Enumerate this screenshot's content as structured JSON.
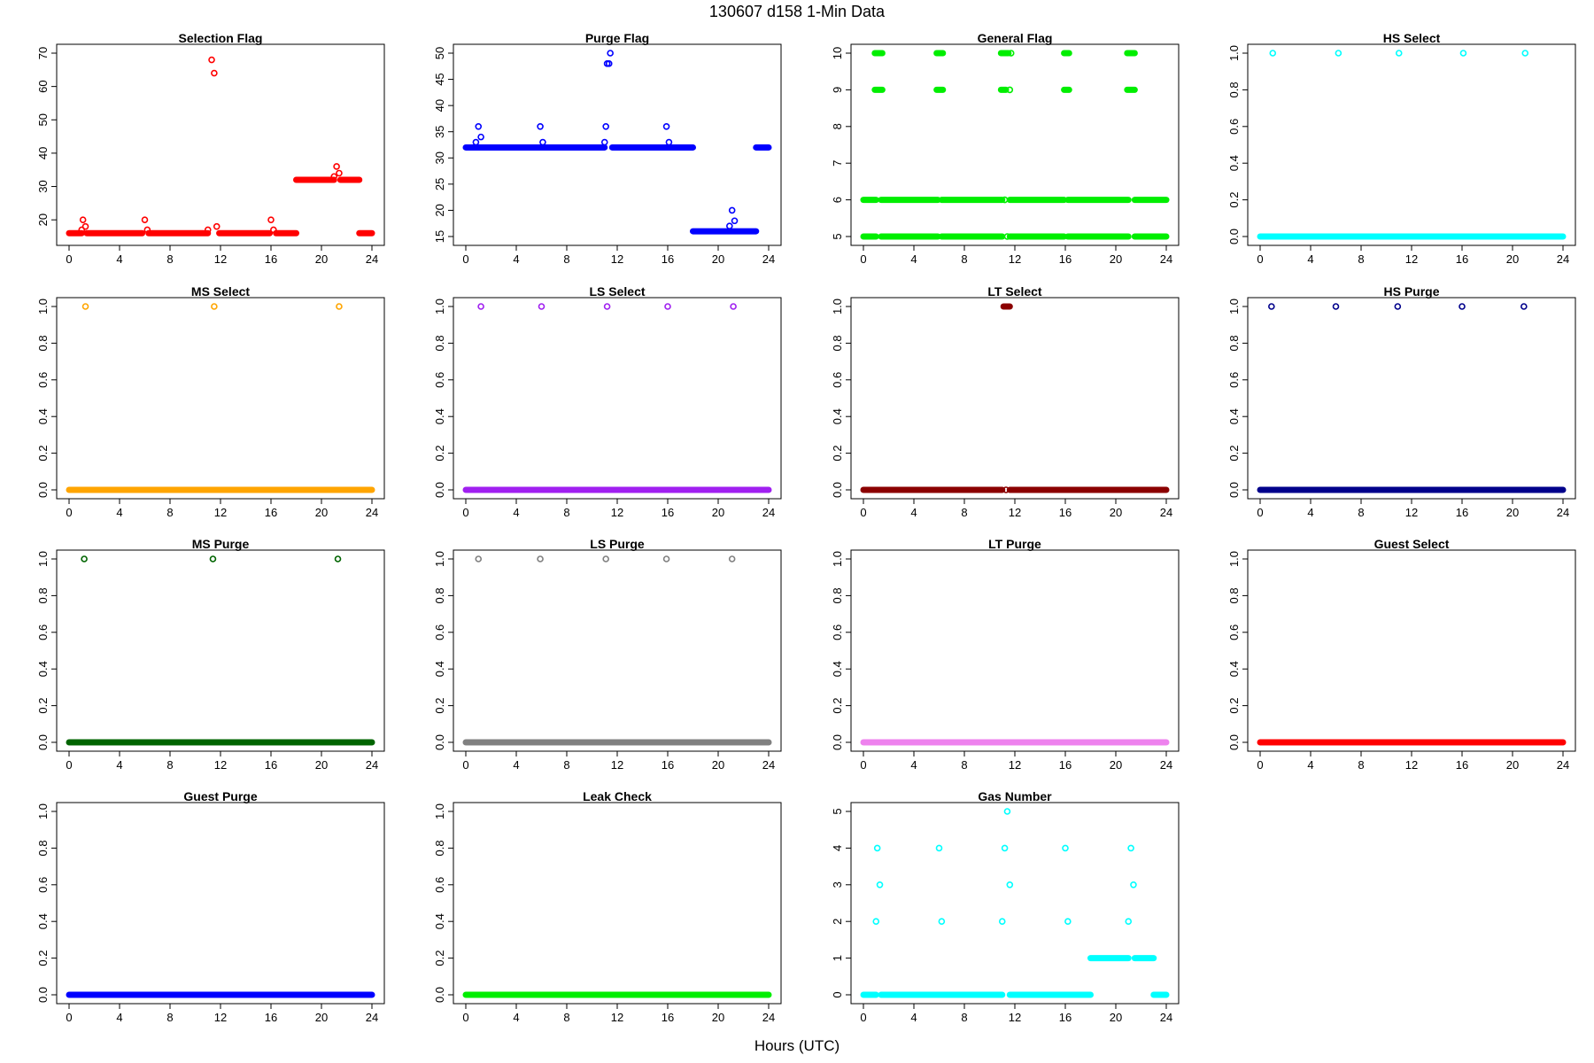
{
  "figure": {
    "title": "130607   d158   1-Min Data",
    "xlabel": "Hours (UTC)"
  },
  "chart_data": [
    {
      "type": "scatter",
      "title": "Selection Flag",
      "color": "#ff0000",
      "xlim": [
        0,
        24
      ],
      "ylim": [
        15,
        70
      ],
      "xticks": [
        0,
        4,
        8,
        12,
        16,
        20,
        24
      ],
      "yticks": [
        20,
        30,
        40,
        50,
        60,
        70
      ],
      "segments": [
        {
          "x0": 0,
          "x1": 1.0,
          "y": 16
        },
        {
          "x0": 1.4,
          "x1": 5.8,
          "y": 16
        },
        {
          "x0": 6.3,
          "x1": 11.0,
          "y": 16
        },
        {
          "x0": 11.9,
          "x1": 15.9,
          "y": 16
        },
        {
          "x0": 16.4,
          "x1": 18.0,
          "y": 16
        },
        {
          "x0": 18.0,
          "x1": 21.0,
          "y": 32
        },
        {
          "x0": 21.5,
          "x1": 23.0,
          "y": 32
        },
        {
          "x0": 23.0,
          "x1": 24.0,
          "y": 16
        }
      ],
      "points": [
        {
          "x": 1.0,
          "y": 17
        },
        {
          "x": 1.1,
          "y": 20
        },
        {
          "x": 1.3,
          "y": 18
        },
        {
          "x": 6.0,
          "y": 20
        },
        {
          "x": 6.2,
          "y": 17
        },
        {
          "x": 11.0,
          "y": 17
        },
        {
          "x": 11.3,
          "y": 68
        },
        {
          "x": 11.5,
          "y": 64
        },
        {
          "x": 11.7,
          "y": 18
        },
        {
          "x": 16.0,
          "y": 20
        },
        {
          "x": 16.2,
          "y": 17
        },
        {
          "x": 21.0,
          "y": 33
        },
        {
          "x": 21.2,
          "y": 36
        },
        {
          "x": 21.4,
          "y": 34
        }
      ]
    },
    {
      "type": "scatter",
      "title": "Purge Flag",
      "color": "#0000ff",
      "xlim": [
        0,
        24
      ],
      "ylim": [
        15,
        50
      ],
      "xticks": [
        0,
        4,
        8,
        12,
        16,
        20,
        24
      ],
      "yticks": [
        15,
        20,
        25,
        30,
        35,
        40,
        45,
        50
      ],
      "segments": [
        {
          "x0": 0,
          "x1": 11.0,
          "y": 32
        },
        {
          "x0": 11.6,
          "x1": 18.0,
          "y": 32
        },
        {
          "x0": 18.0,
          "x1": 23.0,
          "y": 16
        },
        {
          "x0": 23.0,
          "x1": 24.0,
          "y": 32
        }
      ],
      "points": [
        {
          "x": 0.8,
          "y": 33
        },
        {
          "x": 1.0,
          "y": 36
        },
        {
          "x": 1.2,
          "y": 34
        },
        {
          "x": 5.9,
          "y": 36
        },
        {
          "x": 6.1,
          "y": 33
        },
        {
          "x": 11.0,
          "y": 33
        },
        {
          "x": 11.1,
          "y": 36
        },
        {
          "x": 11.2,
          "y": 48
        },
        {
          "x": 11.35,
          "y": 48
        },
        {
          "x": 11.45,
          "y": 50
        },
        {
          "x": 15.9,
          "y": 36
        },
        {
          "x": 16.1,
          "y": 33
        },
        {
          "x": 20.9,
          "y": 17
        },
        {
          "x": 21.1,
          "y": 20
        },
        {
          "x": 21.3,
          "y": 18
        }
      ]
    },
    {
      "type": "scatter",
      "title": "General Flag",
      "color": "#00ee00",
      "xlim": [
        0,
        24
      ],
      "ylim": [
        5,
        10
      ],
      "xticks": [
        0,
        4,
        8,
        12,
        16,
        20,
        24
      ],
      "yticks": [
        5,
        6,
        7,
        8,
        9,
        10
      ],
      "segments": [
        {
          "x0": 0,
          "x1": 1.0,
          "y": 6
        },
        {
          "x0": 1.4,
          "x1": 5.9,
          "y": 6
        },
        {
          "x0": 6.2,
          "x1": 11.0,
          "y": 6
        },
        {
          "x0": 11.6,
          "x1": 15.9,
          "y": 6
        },
        {
          "x0": 16.2,
          "x1": 21.0,
          "y": 6
        },
        {
          "x0": 21.5,
          "x1": 24.0,
          "y": 6
        },
        {
          "x0": 0,
          "x1": 1.0,
          "y": 5
        },
        {
          "x0": 1.4,
          "x1": 5.9,
          "y": 5
        },
        {
          "x0": 6.2,
          "x1": 11.0,
          "y": 5
        },
        {
          "x0": 11.6,
          "x1": 15.9,
          "y": 5
        },
        {
          "x0": 16.2,
          "x1": 21.0,
          "y": 5
        },
        {
          "x0": 21.5,
          "x1": 24.0,
          "y": 5
        },
        {
          "x0": 0.9,
          "x1": 1.5,
          "y": 10
        },
        {
          "x0": 5.8,
          "x1": 6.3,
          "y": 10
        },
        {
          "x0": 10.9,
          "x1": 11.5,
          "y": 10
        },
        {
          "x0": 15.9,
          "x1": 16.3,
          "y": 10
        },
        {
          "x0": 20.9,
          "x1": 21.5,
          "y": 10
        },
        {
          "x0": 0.9,
          "x1": 1.5,
          "y": 9
        },
        {
          "x0": 5.8,
          "x1": 6.3,
          "y": 9
        },
        {
          "x0": 10.9,
          "x1": 11.3,
          "y": 9
        },
        {
          "x0": 15.9,
          "x1": 16.3,
          "y": 9
        },
        {
          "x0": 20.9,
          "x1": 21.5,
          "y": 9
        }
      ],
      "points": [
        {
          "x": 11.2,
          "y": 6
        },
        {
          "x": 11.4,
          "y": 5
        },
        {
          "x": 11.7,
          "y": 10
        },
        {
          "x": 11.6,
          "y": 9
        }
      ]
    },
    {
      "type": "scatter",
      "title": "HS Select",
      "color": "#00ffff",
      "xlim": [
        0,
        24
      ],
      "ylim": [
        0,
        1
      ],
      "xticks": [
        0,
        4,
        8,
        12,
        16,
        20,
        24
      ],
      "yticks": [
        0.0,
        0.2,
        0.4,
        0.6,
        0.8,
        1.0
      ],
      "segments": [
        {
          "x0": 0,
          "x1": 24,
          "y": 0
        }
      ],
      "points": [
        {
          "x": 1.0,
          "y": 1
        },
        {
          "x": 6.2,
          "y": 1
        },
        {
          "x": 11.0,
          "y": 1
        },
        {
          "x": 16.1,
          "y": 1
        },
        {
          "x": 21.0,
          "y": 1
        }
      ]
    },
    {
      "type": "scatter",
      "title": "MS Select",
      "color": "#ffa500",
      "xlim": [
        0,
        24
      ],
      "ylim": [
        0,
        1
      ],
      "xticks": [
        0,
        4,
        8,
        12,
        16,
        20,
        24
      ],
      "yticks": [
        0.0,
        0.2,
        0.4,
        0.6,
        0.8,
        1.0
      ],
      "segments": [
        {
          "x0": 0,
          "x1": 24,
          "y": 0
        }
      ],
      "points": [
        {
          "x": 1.3,
          "y": 1
        },
        {
          "x": 11.5,
          "y": 1
        },
        {
          "x": 21.4,
          "y": 1
        }
      ]
    },
    {
      "type": "scatter",
      "title": "LS Select",
      "color": "#a020f0",
      "xlim": [
        0,
        24
      ],
      "ylim": [
        0,
        1
      ],
      "xticks": [
        0,
        4,
        8,
        12,
        16,
        20,
        24
      ],
      "yticks": [
        0.0,
        0.2,
        0.4,
        0.6,
        0.8,
        1.0
      ],
      "segments": [
        {
          "x0": 0,
          "x1": 24,
          "y": 0
        }
      ],
      "points": [
        {
          "x": 1.2,
          "y": 1
        },
        {
          "x": 6.0,
          "y": 1
        },
        {
          "x": 11.2,
          "y": 1
        },
        {
          "x": 16.0,
          "y": 1
        },
        {
          "x": 21.2,
          "y": 1
        }
      ]
    },
    {
      "type": "scatter",
      "title": "LT Select",
      "color": "#8b0000",
      "xlim": [
        0,
        24
      ],
      "ylim": [
        0,
        1
      ],
      "xticks": [
        0,
        4,
        8,
        12,
        16,
        20,
        24
      ],
      "yticks": [
        0.0,
        0.2,
        0.4,
        0.6,
        0.8,
        1.0
      ],
      "segments": [
        {
          "x0": 0,
          "x1": 11.0,
          "y": 0
        },
        {
          "x0": 11.6,
          "x1": 24,
          "y": 0
        },
        {
          "x0": 11.1,
          "x1": 11.6,
          "y": 1
        }
      ],
      "points": [
        {
          "x": 11.3,
          "y": 0
        }
      ]
    },
    {
      "type": "scatter",
      "title": "HS Purge",
      "color": "#00008b",
      "xlim": [
        0,
        24
      ],
      "ylim": [
        0,
        1
      ],
      "xticks": [
        0,
        4,
        8,
        12,
        16,
        20,
        24
      ],
      "yticks": [
        0.0,
        0.2,
        0.4,
        0.6,
        0.8,
        1.0
      ],
      "segments": [
        {
          "x0": 0,
          "x1": 24,
          "y": 0
        }
      ],
      "points": [
        {
          "x": 0.9,
          "y": 1
        },
        {
          "x": 6.0,
          "y": 1
        },
        {
          "x": 10.9,
          "y": 1
        },
        {
          "x": 16.0,
          "y": 1
        },
        {
          "x": 20.9,
          "y": 1
        }
      ]
    },
    {
      "type": "scatter",
      "title": "MS Purge",
      "color": "#006400",
      "xlim": [
        0,
        24
      ],
      "ylim": [
        0,
        1
      ],
      "xticks": [
        0,
        4,
        8,
        12,
        16,
        20,
        24
      ],
      "yticks": [
        0.0,
        0.2,
        0.4,
        0.6,
        0.8,
        1.0
      ],
      "segments": [
        {
          "x0": 0,
          "x1": 24,
          "y": 0
        }
      ],
      "points": [
        {
          "x": 1.2,
          "y": 1
        },
        {
          "x": 11.4,
          "y": 1
        },
        {
          "x": 21.3,
          "y": 1
        }
      ]
    },
    {
      "type": "scatter",
      "title": "LS Purge",
      "color": "#808080",
      "xlim": [
        0,
        24
      ],
      "ylim": [
        0,
        1
      ],
      "xticks": [
        0,
        4,
        8,
        12,
        16,
        20,
        24
      ],
      "yticks": [
        0.0,
        0.2,
        0.4,
        0.6,
        0.8,
        1.0
      ],
      "segments": [
        {
          "x0": 0,
          "x1": 24,
          "y": 0
        }
      ],
      "points": [
        {
          "x": 1.0,
          "y": 1
        },
        {
          "x": 5.9,
          "y": 1
        },
        {
          "x": 11.1,
          "y": 1
        },
        {
          "x": 15.9,
          "y": 1
        },
        {
          "x": 21.1,
          "y": 1
        }
      ]
    },
    {
      "type": "scatter",
      "title": "LT Purge",
      "color": "#ee82ee",
      "xlim": [
        0,
        24
      ],
      "ylim": [
        0,
        1
      ],
      "xticks": [
        0,
        4,
        8,
        12,
        16,
        20,
        24
      ],
      "yticks": [
        0.0,
        0.2,
        0.4,
        0.6,
        0.8,
        1.0
      ],
      "segments": [
        {
          "x0": 0,
          "x1": 24,
          "y": 0
        }
      ],
      "points": []
    },
    {
      "type": "scatter",
      "title": "Guest Select",
      "color": "#ff0000",
      "xlim": [
        0,
        24
      ],
      "ylim": [
        0,
        1
      ],
      "xticks": [
        0,
        4,
        8,
        12,
        16,
        20,
        24
      ],
      "yticks": [
        0.0,
        0.2,
        0.4,
        0.6,
        0.8,
        1.0
      ],
      "segments": [
        {
          "x0": 0,
          "x1": 24,
          "y": 0
        }
      ],
      "points": []
    },
    {
      "type": "scatter",
      "title": "Guest Purge",
      "color": "#0000ff",
      "xlim": [
        0,
        24
      ],
      "ylim": [
        0,
        1
      ],
      "xticks": [
        0,
        4,
        8,
        12,
        16,
        20,
        24
      ],
      "yticks": [
        0.0,
        0.2,
        0.4,
        0.6,
        0.8,
        1.0
      ],
      "segments": [
        {
          "x0": 0,
          "x1": 24,
          "y": 0
        }
      ],
      "points": []
    },
    {
      "type": "scatter",
      "title": "Leak Check",
      "color": "#00ee00",
      "xlim": [
        0,
        24
      ],
      "ylim": [
        0,
        1
      ],
      "xticks": [
        0,
        4,
        8,
        12,
        16,
        20,
        24
      ],
      "yticks": [
        0.0,
        0.2,
        0.4,
        0.6,
        0.8,
        1.0
      ],
      "segments": [
        {
          "x0": 0,
          "x1": 24,
          "y": 0
        }
      ],
      "points": []
    },
    {
      "type": "scatter",
      "title": "Gas Number",
      "color": "#00ffff",
      "xlim": [
        0,
        24
      ],
      "ylim": [
        0,
        5
      ],
      "xticks": [
        0,
        4,
        8,
        12,
        16,
        20,
        24
      ],
      "yticks": [
        0,
        1,
        2,
        3,
        4,
        5
      ],
      "segments": [
        {
          "x0": 0,
          "x1": 1.0,
          "y": 0
        },
        {
          "x0": 1.4,
          "x1": 11.0,
          "y": 0
        },
        {
          "x0": 11.6,
          "x1": 18.0,
          "y": 0
        },
        {
          "x0": 18.0,
          "x1": 21.0,
          "y": 1
        },
        {
          "x0": 21.5,
          "x1": 23.0,
          "y": 1
        },
        {
          "x0": 23.0,
          "x1": 24.0,
          "y": 0
        }
      ],
      "points": [
        {
          "x": 1.0,
          "y": 2
        },
        {
          "x": 1.1,
          "y": 4
        },
        {
          "x": 1.3,
          "y": 3
        },
        {
          "x": 6.0,
          "y": 4
        },
        {
          "x": 6.2,
          "y": 2
        },
        {
          "x": 11.0,
          "y": 2
        },
        {
          "x": 11.2,
          "y": 4
        },
        {
          "x": 11.4,
          "y": 5
        },
        {
          "x": 11.6,
          "y": 3
        },
        {
          "x": 16.0,
          "y": 4
        },
        {
          "x": 16.2,
          "y": 2
        },
        {
          "x": 21.0,
          "y": 2
        },
        {
          "x": 21.2,
          "y": 4
        },
        {
          "x": 21.4,
          "y": 3
        }
      ]
    }
  ]
}
